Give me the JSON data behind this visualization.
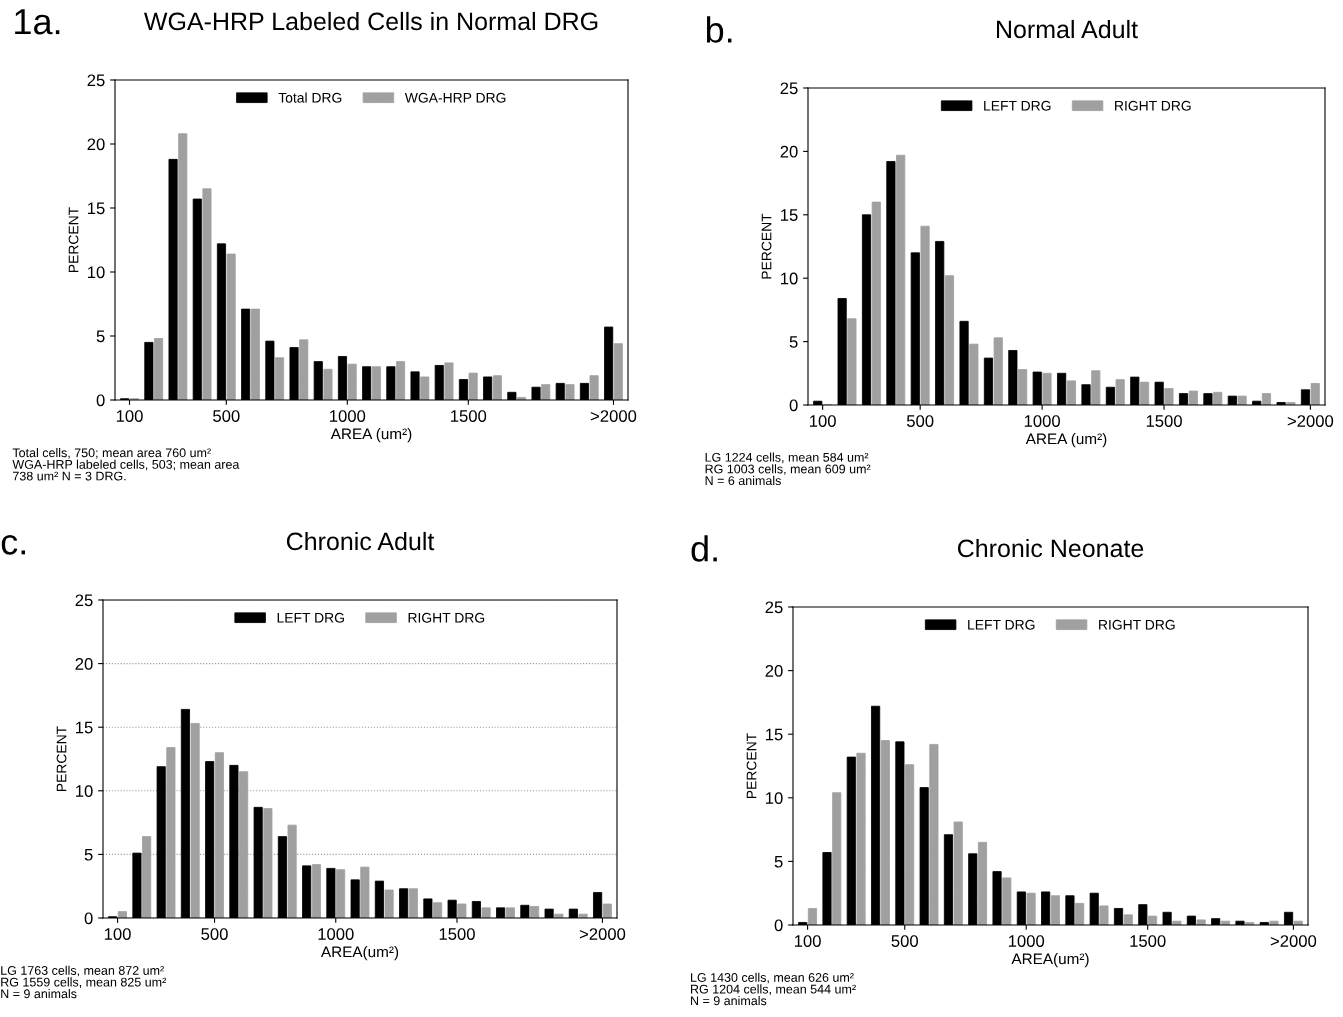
{
  "chart_data": [
    {
      "type": "bar",
      "title": "WGA-HRP Labeled Cells in Normal DRG",
      "xlabel": "AREA (um²)",
      "ylabel": "PERCENT",
      "categories": [
        "100",
        null,
        null,
        null,
        "500",
        null,
        null,
        null,
        null,
        "1000",
        null,
        null,
        null,
        null,
        "1500",
        null,
        null,
        null,
        null,
        null,
        ">2000"
      ],
      "series": [
        {
          "name": "Total DRG",
          "color": "#000000",
          "values": [
            0.1,
            4.5,
            18.8,
            15.7,
            12.2,
            7.1,
            4.6,
            4.1,
            3.0,
            3.4,
            2.6,
            2.6,
            2.2,
            2.7,
            1.6,
            1.8,
            0.6,
            1.0,
            1.3,
            1.3,
            5.7
          ]
        },
        {
          "name": "WGA-HRP DRG",
          "color": "#a0a0a0",
          "values": [
            0.1,
            4.8,
            20.8,
            16.5,
            11.4,
            7.1,
            3.3,
            4.7,
            2.4,
            2.8,
            2.6,
            3.0,
            1.8,
            2.9,
            2.1,
            1.9,
            0.2,
            1.2,
            1.2,
            1.9,
            4.4
          ]
        }
      ],
      "ylim": [
        0,
        25
      ],
      "yticks": [
        0,
        5,
        10,
        15,
        20,
        25
      ],
      "legend": "top",
      "annotations": [
        "1a.",
        "Total cells, 750; mean area 760 um²\nWGA-HRP labeled cells, 503; mean area\n738 um² N = 3 DRG."
      ]
    },
    {
      "type": "bar",
      "title": "Normal Adult",
      "xlabel": "AREA (um²)",
      "ylabel": "PERCENT",
      "categories": [
        "100",
        null,
        null,
        null,
        "500",
        null,
        null,
        null,
        null,
        "1000",
        null,
        null,
        null,
        null,
        "1500",
        null,
        null,
        null,
        null,
        null,
        ">2000"
      ],
      "series": [
        {
          "name": "LEFT DRG",
          "color": "#000000",
          "values": [
            0.3,
            8.4,
            15.0,
            19.2,
            12.0,
            12.9,
            6.6,
            3.7,
            4.3,
            2.6,
            2.5,
            1.6,
            1.4,
            2.2,
            1.8,
            0.9,
            0.9,
            0.7,
            0.3,
            0.2,
            1.2
          ]
        },
        {
          "name": "RIGHT DRG",
          "color": "#a0a0a0",
          "values": [
            0.0,
            6.8,
            16.0,
            19.7,
            14.1,
            10.2,
            4.8,
            5.3,
            2.8,
            2.5,
            1.9,
            2.7,
            2.0,
            1.8,
            1.3,
            1.1,
            1.0,
            0.7,
            0.9,
            0.2,
            1.7
          ]
        }
      ],
      "ylim": [
        0,
        25
      ],
      "yticks": [
        0,
        5,
        10,
        15,
        20,
        25
      ],
      "legend": "top",
      "annotations": [
        "b.",
        "LG 1224 cells, mean 584 um²\nRG 1003 cells, mean 609 um²\nN = 6 animals"
      ]
    },
    {
      "type": "bar",
      "title": "Chronic Adult",
      "xlabel": "AREA(um²)",
      "ylabel": "PERCENT",
      "categories": [
        "100",
        null,
        null,
        null,
        "500",
        null,
        null,
        null,
        null,
        "1000",
        null,
        null,
        null,
        null,
        "1500",
        null,
        null,
        null,
        null,
        null,
        ">2000"
      ],
      "series": [
        {
          "name": "LEFT DRG",
          "color": "#000000",
          "values": [
            0.1,
            5.1,
            11.9,
            16.4,
            12.3,
            12.0,
            8.7,
            6.4,
            4.1,
            3.9,
            3.0,
            2.9,
            2.3,
            1.5,
            1.4,
            1.3,
            0.8,
            1.0,
            0.7,
            0.7,
            2.0
          ]
        },
        {
          "name": "RIGHT DRG",
          "color": "#a0a0a0",
          "values": [
            0.5,
            6.4,
            13.4,
            15.3,
            13.0,
            11.5,
            8.6,
            7.3,
            4.2,
            3.8,
            4.0,
            2.2,
            2.3,
            1.2,
            1.1,
            0.8,
            0.8,
            0.9,
            0.3,
            0.3,
            1.1
          ]
        }
      ],
      "ylim": [
        0,
        25
      ],
      "yticks": [
        0,
        5,
        10,
        15,
        20,
        25
      ],
      "legend": "top",
      "grid": "y",
      "annotations": [
        "c.",
        "LG 1763 cells, mean 872 um²\nRG 1559 cells, mean 825 um²\nN = 9 animals"
      ]
    },
    {
      "type": "bar",
      "title": "Chronic Neonate",
      "xlabel": "AREA(um²)",
      "ylabel": "PERCENT",
      "categories": [
        "100",
        null,
        null,
        null,
        "500",
        null,
        null,
        null,
        null,
        "1000",
        null,
        null,
        null,
        null,
        "1500",
        null,
        null,
        null,
        null,
        null,
        ">2000"
      ],
      "series": [
        {
          "name": "LEFT DRG",
          "color": "#000000",
          "values": [
            0.2,
            5.7,
            13.2,
            17.2,
            14.4,
            10.8,
            7.1,
            5.6,
            4.2,
            2.6,
            2.6,
            2.3,
            2.5,
            1.3,
            1.6,
            1.0,
            0.7,
            0.5,
            0.3,
            0.2,
            1.0
          ]
        },
        {
          "name": "RIGHT DRG",
          "color": "#a0a0a0",
          "values": [
            1.3,
            10.4,
            13.5,
            14.5,
            12.6,
            14.2,
            8.1,
            6.5,
            3.7,
            2.5,
            2.3,
            1.7,
            1.5,
            0.8,
            0.7,
            0.3,
            0.4,
            0.3,
            0.2,
            0.3,
            0.3
          ]
        }
      ],
      "ylim": [
        0,
        25
      ],
      "yticks": [
        0,
        5,
        10,
        15,
        20,
        25
      ],
      "legend": "top",
      "annotations": [
        "d.",
        "LG 1430 cells, mean 626 um²\nRG 1204 cells, mean 544 um²\nN = 9 animals"
      ]
    }
  ]
}
